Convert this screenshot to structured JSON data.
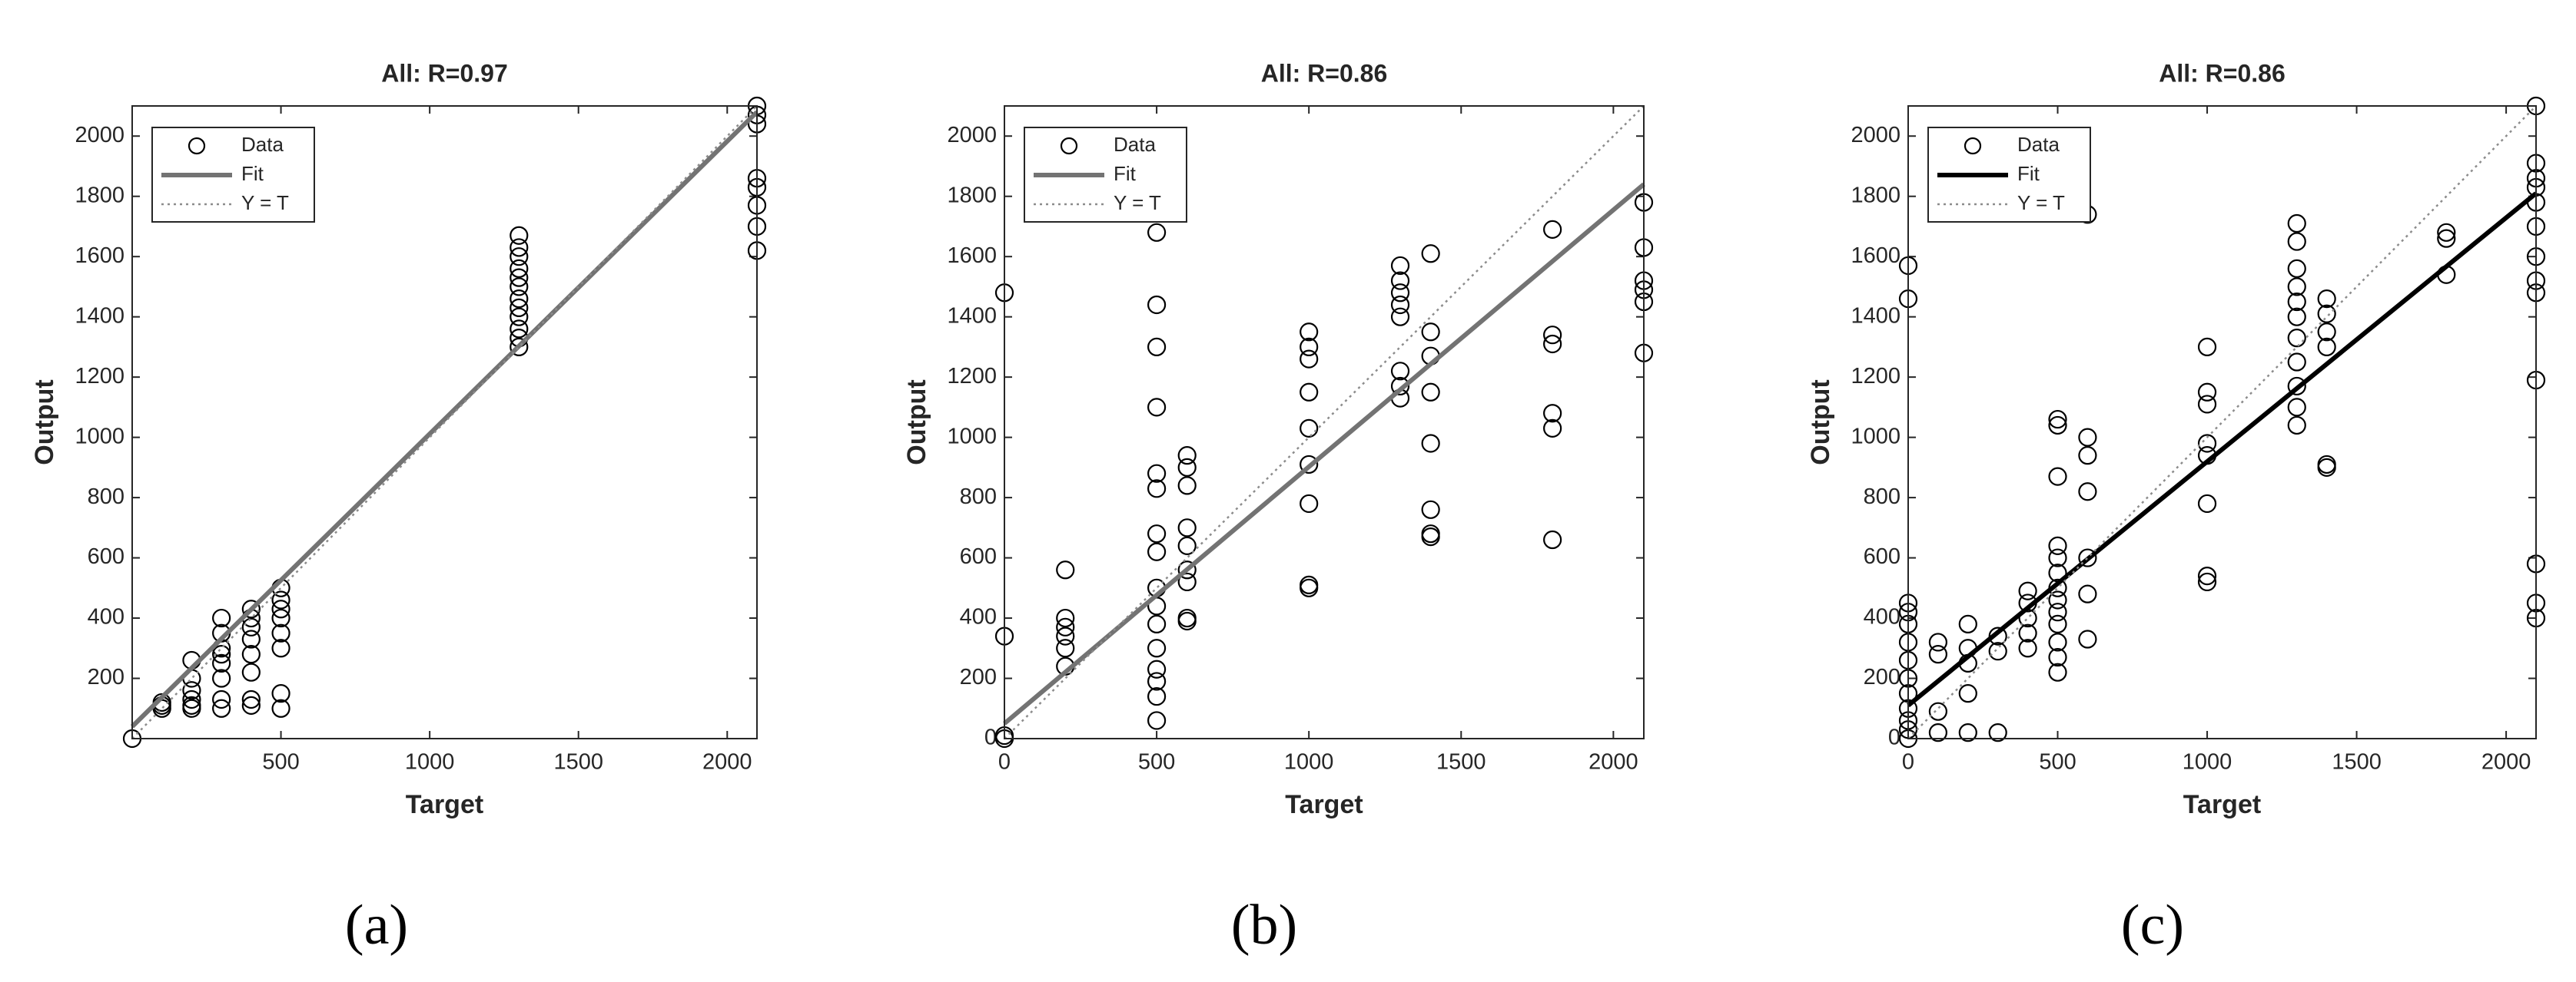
{
  "chart_data": [
    {
      "type": "scatter",
      "title": "All: R=0.97",
      "xlabel": "Target",
      "ylabel": "Output",
      "panel_label": "(a)",
      "xlim": [
        0,
        2100
      ],
      "ylim": [
        0,
        2100
      ],
      "xticks": [
        500,
        1000,
        1500,
        2000
      ],
      "yticks": [
        200,
        400,
        600,
        800,
        1000,
        1200,
        1400,
        1600,
        1800,
        2000
      ],
      "legend": "upper left",
      "series": [
        {
          "name": "Data",
          "color": "#000000",
          "x": [
            0,
            100,
            100,
            100,
            200,
            200,
            200,
            200,
            200,
            200,
            300,
            300,
            300,
            300,
            300,
            300,
            300,
            300,
            400,
            400,
            400,
            400,
            400,
            400,
            400,
            400,
            500,
            500,
            500,
            500,
            500,
            500,
            500,
            500,
            1300,
            1300,
            1300,
            1300,
            1300,
            1300,
            1300,
            1300,
            1300,
            1300,
            1300,
            1300,
            2100,
            2100,
            2100,
            2100,
            2100,
            2100,
            2100,
            2100
          ],
          "values": [
            0,
            110,
            120,
            100,
            100,
            130,
            160,
            260,
            200,
            110,
            100,
            130,
            200,
            250,
            300,
            350,
            400,
            280,
            110,
            130,
            220,
            280,
            330,
            370,
            400,
            430,
            100,
            150,
            300,
            350,
            400,
            430,
            460,
            500,
            1300,
            1330,
            1360,
            1400,
            1430,
            1460,
            1500,
            1530,
            1560,
            1600,
            1630,
            1670,
            1620,
            1700,
            1770,
            1830,
            1860,
            2040,
            2070,
            2100
          ]
        },
        {
          "name": "Fit",
          "color": "#737373",
          "x": [
            0,
            2100
          ],
          "values": [
            40,
            2080
          ]
        },
        {
          "name": "Y = T",
          "color": "#8c8c8c",
          "x": [
            0,
            2100
          ],
          "values": [
            0,
            2100
          ]
        }
      ]
    },
    {
      "type": "scatter",
      "title": "All: R=0.86",
      "xlabel": "Target",
      "ylabel": "Output",
      "panel_label": "(b)",
      "xlim": [
        0,
        2100
      ],
      "ylim": [
        0,
        2100
      ],
      "xticks": [
        0,
        500,
        1000,
        1500,
        2000
      ],
      "yticks": [
        0,
        200,
        400,
        600,
        800,
        1000,
        1200,
        1400,
        1600,
        1800,
        2000
      ],
      "legend": "upper left",
      "series": [
        {
          "name": "Data",
          "color": "#000000",
          "x": [
            0,
            0,
            0,
            0,
            200,
            200,
            200,
            200,
            200,
            200,
            500,
            500,
            500,
            500,
            500,
            500,
            500,
            500,
            500,
            500,
            500,
            500,
            500,
            500,
            500,
            500,
            600,
            600,
            600,
            600,
            600,
            600,
            600,
            600,
            600,
            1000,
            1000,
            1000,
            1000,
            1000,
            1000,
            1000,
            1000,
            1000,
            1300,
            1300,
            1300,
            1300,
            1300,
            1300,
            1300,
            1300,
            1400,
            1400,
            1400,
            1400,
            1400,
            1400,
            1400,
            1400,
            1800,
            1800,
            1800,
            1800,
            1800,
            1800,
            2100,
            2100,
            2100,
            2100,
            2100,
            2100
          ],
          "values": [
            0,
            10,
            340,
            1480,
            240,
            300,
            340,
            370,
            400,
            560,
            60,
            140,
            190,
            230,
            300,
            380,
            440,
            500,
            620,
            680,
            830,
            880,
            1100,
            1300,
            1440,
            1680,
            390,
            400,
            520,
            560,
            640,
            700,
            840,
            900,
            940,
            500,
            510,
            780,
            910,
            1030,
            1150,
            1260,
            1300,
            1350,
            1130,
            1170,
            1220,
            1400,
            1440,
            1480,
            1520,
            1570,
            670,
            680,
            760,
            980,
            1150,
            1270,
            1350,
            1610,
            660,
            1030,
            1080,
            1310,
            1340,
            1690,
            1280,
            1450,
            1490,
            1520,
            1630,
            1780
          ]
        },
        {
          "name": "Fit",
          "color": "#737373",
          "x": [
            0,
            2100
          ],
          "values": [
            50,
            1840
          ]
        },
        {
          "name": "Y = T",
          "color": "#8c8c8c",
          "x": [
            0,
            2100
          ],
          "values": [
            0,
            2100
          ]
        }
      ]
    },
    {
      "type": "scatter",
      "title": "All: R=0.86",
      "xlabel": "Target",
      "ylabel": "Output",
      "panel_label": "(c)",
      "xlim": [
        0,
        2100
      ],
      "ylim": [
        0,
        2100
      ],
      "xticks": [
        0,
        500,
        1000,
        1500,
        2000
      ],
      "yticks": [
        0,
        200,
        400,
        600,
        800,
        1000,
        1200,
        1400,
        1600,
        1800,
        2000
      ],
      "legend": "upper left",
      "series": [
        {
          "name": "Data",
          "color": "#000000",
          "x": [
            0,
            0,
            0,
            0,
            0,
            0,
            0,
            0,
            0,
            0,
            0,
            0,
            0,
            100,
            100,
            100,
            100,
            200,
            200,
            200,
            200,
            200,
            300,
            300,
            300,
            400,
            400,
            400,
            400,
            400,
            500,
            500,
            500,
            500,
            500,
            500,
            500,
            500,
            500,
            500,
            500,
            500,
            500,
            600,
            600,
            600,
            600,
            600,
            600,
            600,
            1000,
            1000,
            1000,
            1000,
            1000,
            1000,
            1000,
            1000,
            1300,
            1300,
            1300,
            1300,
            1300,
            1300,
            1300,
            1300,
            1300,
            1300,
            1300,
            1400,
            1400,
            1400,
            1400,
            1400,
            1400,
            1800,
            1800,
            1800,
            2100,
            2100,
            2100,
            2100,
            2100,
            2100,
            2100,
            2100,
            2100,
            2100,
            2100,
            2100,
            2100
          ],
          "values": [
            0,
            30,
            60,
            100,
            150,
            200,
            260,
            320,
            380,
            420,
            450,
            1460,
            1570,
            20,
            90,
            280,
            320,
            20,
            150,
            250,
            300,
            380,
            20,
            290,
            340,
            300,
            350,
            400,
            450,
            490,
            220,
            270,
            320,
            380,
            420,
            460,
            500,
            550,
            600,
            640,
            870,
            1040,
            1060,
            330,
            480,
            600,
            820,
            940,
            1000,
            1740,
            520,
            540,
            780,
            940,
            980,
            1110,
            1150,
            1300,
            1040,
            1100,
            1170,
            1250,
            1330,
            1400,
            1450,
            1500,
            1560,
            1650,
            1710,
            900,
            910,
            1300,
            1350,
            1410,
            1460,
            1540,
            1660,
            1680,
            400,
            450,
            580,
            1190,
            1480,
            1520,
            1600,
            1700,
            1780,
            1830,
            1860,
            1910,
            2100
          ]
        },
        {
          "name": "Fit",
          "color": "#000000",
          "x": [
            0,
            2100
          ],
          "values": [
            110,
            1810
          ]
        },
        {
          "name": "Y = T",
          "color": "#8c8c8c",
          "x": [
            0,
            2100
          ],
          "values": [
            0,
            2100
          ]
        }
      ]
    }
  ]
}
